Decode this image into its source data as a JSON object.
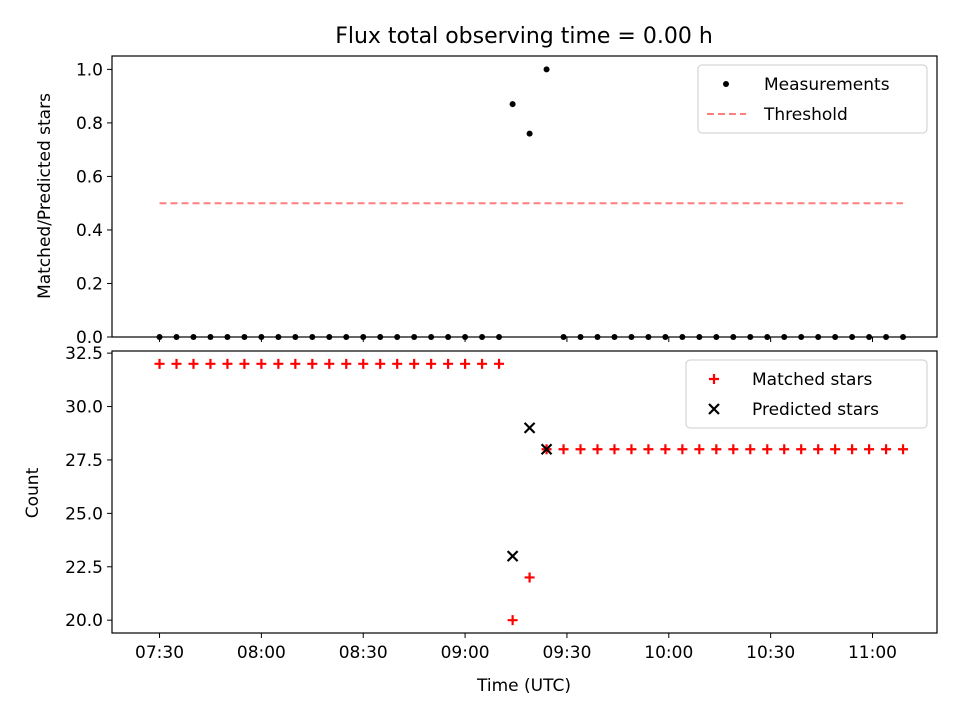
{
  "title": "Flux total observing time = 0.00 h",
  "xlabel": "Time (UTC)",
  "x_ticks": [
    "07:30",
    "08:00",
    "08:30",
    "09:00",
    "09:30",
    "10:00",
    "10:30",
    "11:00"
  ],
  "chart_data": [
    {
      "type": "scatter",
      "ylabel": "Matched/Predicted stars",
      "xlim": [
        "07:16",
        "11:19"
      ],
      "ylim": [
        0.0,
        1.05
      ],
      "y_ticks": [
        "0.0",
        "0.2",
        "0.4",
        "0.6",
        "0.8",
        "1.0"
      ],
      "legend_position": "top-right",
      "series": [
        {
          "name": "Measurements",
          "color": "#000000",
          "marker": "dot",
          "x": [
            "07:30",
            "07:35",
            "07:40",
            "07:45",
            "07:50",
            "07:55",
            "08:00",
            "08:05",
            "08:10",
            "08:15",
            "08:20",
            "08:25",
            "08:30",
            "08:35",
            "08:40",
            "08:45",
            "08:50",
            "08:55",
            "09:00",
            "09:05",
            "09:10",
            "09:14",
            "09:19",
            "09:24",
            "09:29",
            "09:34",
            "09:39",
            "09:44",
            "09:49",
            "09:54",
            "09:59",
            "10:04",
            "10:09",
            "10:14",
            "10:19",
            "10:24",
            "10:29",
            "10:34",
            "10:39",
            "10:44",
            "10:49",
            "10:54",
            "10:59",
            "11:04",
            "11:09"
          ],
          "y": [
            0,
            0,
            0,
            0,
            0,
            0,
            0,
            0,
            0,
            0,
            0,
            0,
            0,
            0,
            0,
            0,
            0,
            0,
            0,
            0,
            0,
            0.87,
            0.76,
            1.0,
            0,
            0,
            0,
            0,
            0,
            0,
            0,
            0,
            0,
            0,
            0,
            0,
            0,
            0,
            0,
            0,
            0,
            0,
            0,
            0,
            0
          ]
        },
        {
          "name": "Threshold",
          "color": "#ff7f7f",
          "style": "dashed",
          "x": [
            "07:30",
            "11:09"
          ],
          "y": [
            0.5,
            0.5
          ]
        }
      ]
    },
    {
      "type": "scatter",
      "ylabel": "Count",
      "xlim": [
        "07:16",
        "11:19"
      ],
      "ylim": [
        19.4,
        32.6
      ],
      "y_ticks": [
        "20.0",
        "22.5",
        "25.0",
        "27.5",
        "30.0",
        "32.5"
      ],
      "legend_position": "top-right",
      "series": [
        {
          "name": "Matched stars",
          "color": "#ff0000",
          "marker": "plus",
          "x": [
            "07:30",
            "07:35",
            "07:40",
            "07:45",
            "07:50",
            "07:55",
            "08:00",
            "08:05",
            "08:10",
            "08:15",
            "08:20",
            "08:25",
            "08:30",
            "08:35",
            "08:40",
            "08:45",
            "08:50",
            "08:55",
            "09:00",
            "09:05",
            "09:10",
            "09:14",
            "09:19",
            "09:24",
            "09:29",
            "09:34",
            "09:39",
            "09:44",
            "09:49",
            "09:54",
            "09:59",
            "10:04",
            "10:09",
            "10:14",
            "10:19",
            "10:24",
            "10:29",
            "10:34",
            "10:39",
            "10:44",
            "10:49",
            "10:54",
            "10:59",
            "11:04",
            "11:09"
          ],
          "y": [
            32,
            32,
            32,
            32,
            32,
            32,
            32,
            32,
            32,
            32,
            32,
            32,
            32,
            32,
            32,
            32,
            32,
            32,
            32,
            32,
            32,
            20,
            22,
            28,
            28,
            28,
            28,
            28,
            28,
            28,
            28,
            28,
            28,
            28,
            28,
            28,
            28,
            28,
            28,
            28,
            28,
            28,
            28,
            28,
            28
          ]
        },
        {
          "name": "Predicted stars",
          "color": "#000000",
          "marker": "x",
          "x": [
            "09:14",
            "09:19",
            "09:24"
          ],
          "y": [
            23,
            29,
            28
          ]
        }
      ]
    }
  ]
}
